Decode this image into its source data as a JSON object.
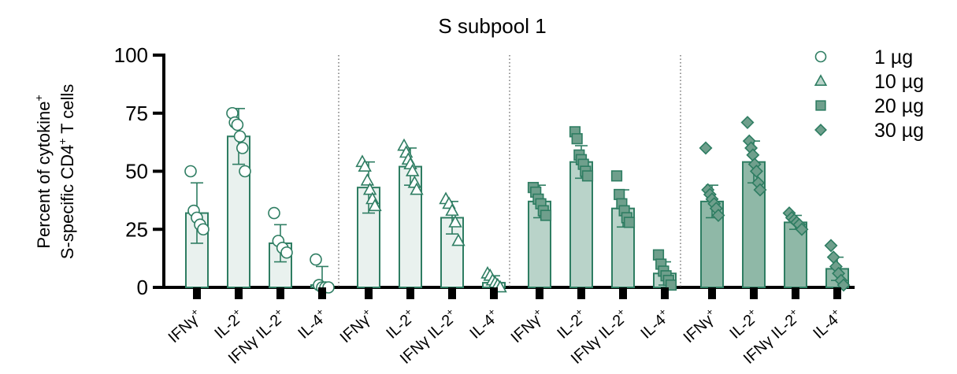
{
  "chart_data": {
    "type": "bar",
    "title": "S subpool 1",
    "ylabel_line1": "Percent of cytokine",
    "ylabel_line1_sup": "+",
    "ylabel_line2_pre": "S-specific CD4",
    "ylabel_line2_sup": "+",
    "ylabel_line2_post": " T cells",
    "ylim": [
      0,
      100
    ],
    "yticks": [
      "0",
      "25",
      "50",
      "75",
      "100"
    ],
    "ytick_values": [
      0,
      25,
      50,
      75,
      100
    ],
    "grid": false,
    "legend_position": "top-right",
    "colors": {
      "stroke": "#2e7d62",
      "fill_light": "#e9f1ee",
      "fill_mid": "#b9d3c9",
      "fill_dark": "#8fb8a7",
      "marker_fill": "#6f9f8c",
      "axis": "#000000",
      "divider": "#555555"
    },
    "categories": [
      {
        "base": "IFNγ",
        "sup": "+"
      },
      {
        "base": "IL-2",
        "sup": "+"
      },
      {
        "base": "IFNγ IL-2",
        "sup": "+"
      },
      {
        "base": "IL-4",
        "sup": "+"
      }
    ],
    "series": [
      {
        "name": "1 µg",
        "marker": "circle",
        "fill": "fill_light",
        "means": [
          32,
          65,
          19,
          1
        ],
        "errors": [
          13,
          12,
          8,
          8
        ],
        "points": [
          [
            50,
            33,
            30,
            27,
            25
          ],
          [
            75,
            71,
            70,
            65,
            60,
            50
          ],
          [
            32,
            20,
            17,
            15
          ],
          [
            12,
            1,
            0,
            0,
            0
          ]
        ]
      },
      {
        "name": "10 µg",
        "marker": "triangle",
        "fill": "fill_light",
        "means": [
          43,
          52,
          30,
          2
        ],
        "errors": [
          11,
          8,
          7,
          3
        ],
        "points": [
          [
            54,
            52,
            46,
            42,
            38,
            35
          ],
          [
            61,
            58,
            55,
            53,
            50,
            45,
            42
          ],
          [
            38,
            36,
            33,
            28,
            20
          ],
          [
            6,
            5,
            3,
            2,
            1,
            0
          ]
        ]
      },
      {
        "name": "20 µg",
        "marker": "square",
        "fill": "fill_mid",
        "means": [
          37,
          54,
          34,
          6
        ],
        "errors": [
          7,
          7,
          8,
          5
        ],
        "points": [
          [
            43,
            41,
            38,
            36,
            33,
            31
          ],
          [
            67,
            64,
            57,
            55,
            53,
            50,
            48
          ],
          [
            48,
            40,
            36,
            33,
            30,
            28
          ],
          [
            14,
            10,
            7,
            5,
            3,
            1
          ]
        ]
      },
      {
        "name": "30 µg",
        "marker": "diamond",
        "fill": "fill_dark",
        "means": [
          37,
          54,
          28,
          8
        ],
        "errors": [
          7,
          9,
          3,
          5
        ],
        "points": [
          [
            60,
            42,
            40,
            38,
            36,
            34,
            31
          ],
          [
            71,
            63,
            60,
            57,
            53,
            50,
            45,
            42
          ],
          [
            32,
            30,
            29,
            28,
            27,
            25
          ],
          [
            18,
            13,
            9,
            6,
            3,
            1
          ]
        ]
      }
    ]
  }
}
